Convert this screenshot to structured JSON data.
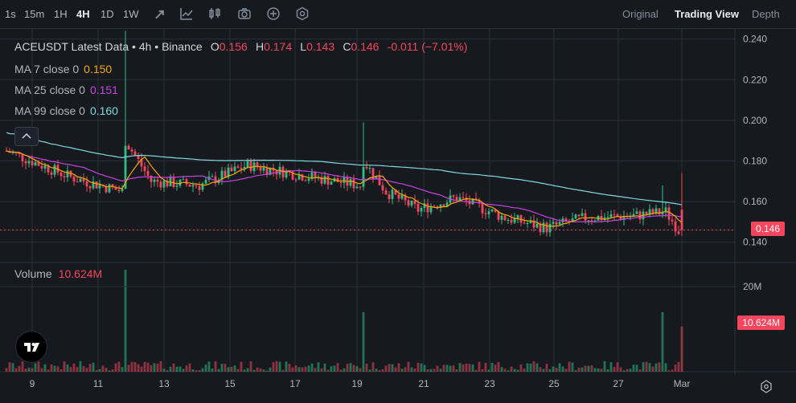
{
  "toolbar": {
    "timeframes": [
      "1s",
      "15m",
      "1H",
      "4H",
      "1D",
      "1W"
    ],
    "active_timeframe": "4H",
    "views": [
      "Original",
      "Trading View",
      "Depth"
    ],
    "active_view": "Trading View"
  },
  "legend": {
    "symbol": "ACEUSDT Latest Data • 4h • Binance",
    "open_label": "O",
    "open": "0.156",
    "high_label": "H",
    "high": "0.174",
    "low_label": "L",
    "low": "0.143",
    "close_label": "C",
    "close": "0.146",
    "change": "-0.011 (−7.01%)",
    "ma": [
      {
        "label": "MA 7 close 0",
        "value": "0.150",
        "color": "#f7a600"
      },
      {
        "label": "MA 25 close 0",
        "value": "0.151",
        "color": "#c842e6"
      },
      {
        "label": "MA 99 close 0",
        "value": "0.160",
        "color": "#7fd8e0"
      }
    ]
  },
  "volume": {
    "label": "Volume",
    "value": "10.624M"
  },
  "price_axis": [
    "0.240",
    "0.220",
    "0.200",
    "0.180",
    "0.160",
    "0.140"
  ],
  "volume_axis": [
    "20M"
  ],
  "last_price_tag": "0.146",
  "last_volume_tag": "10.624M",
  "time_axis": [
    "9",
    "11",
    "13",
    "15",
    "17",
    "19",
    "21",
    "23",
    "25",
    "27",
    "Mar"
  ],
  "colors": {
    "up": "#2ebd85",
    "down": "#f6465d",
    "bg": "#161a1e",
    "grid": "#2a2e39"
  },
  "chart_data": {
    "type": "candlestick",
    "price_range": [
      0.13,
      0.245
    ],
    "volume_range_m": [
      0,
      24
    ],
    "seed": 7,
    "key_points": [
      {
        "t": 0,
        "price": 0.185
      },
      {
        "t": 20,
        "price": 0.172
      },
      {
        "t": 36,
        "price": 0.165
      },
      {
        "t": 37,
        "price": 0.19
      },
      {
        "t": 45,
        "price": 0.17
      },
      {
        "t": 60,
        "price": 0.168
      },
      {
        "t": 75,
        "price": 0.178
      },
      {
        "t": 95,
        "price": 0.172
      },
      {
        "t": 110,
        "price": 0.168
      },
      {
        "t": 111,
        "price": 0.18
      },
      {
        "t": 118,
        "price": 0.165
      },
      {
        "t": 128,
        "price": 0.156
      },
      {
        "t": 140,
        "price": 0.162
      },
      {
        "t": 155,
        "price": 0.152
      },
      {
        "t": 168,
        "price": 0.147
      },
      {
        "t": 180,
        "price": 0.152
      },
      {
        "t": 195,
        "price": 0.153
      },
      {
        "t": 205,
        "price": 0.155
      },
      {
        "t": 209,
        "price": 0.146
      }
    ],
    "spikes": [
      {
        "t": 37,
        "high": 0.244,
        "vol_m": 24
      },
      {
        "t": 111,
        "high": 0.199,
        "vol_m": 14
      },
      {
        "t": 204,
        "high": 0.168,
        "vol_m": 14
      },
      {
        "t": 210,
        "high": 0.174,
        "vol_m": 10.624
      }
    ],
    "ma_last": {
      "ma7": 0.15,
      "ma25": 0.151,
      "ma99": 0.16
    }
  }
}
